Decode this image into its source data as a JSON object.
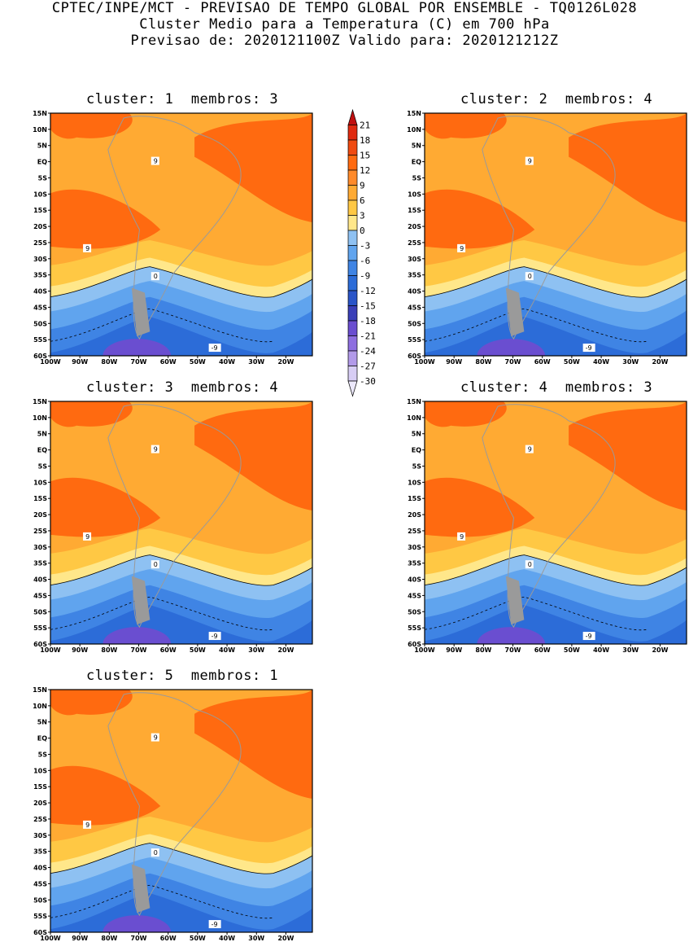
{
  "header": {
    "line1": "CPTEC/INPE/MCT - PREVISAO DE TEMPO GLOBAL POR ENSEMBLE - TQ0126L028",
    "line2": "Cluster Medio para a Temperatura (C) em 700 hPa",
    "line3": "Previsao de: 2020121100Z   Valido para: 2020121212Z"
  },
  "axes": {
    "lat_labels": [
      "15N",
      "10N",
      "5N",
      "EQ",
      "5S",
      "10S",
      "15S",
      "20S",
      "25S",
      "30S",
      "35S",
      "40S",
      "45S",
      "50S",
      "55S",
      "60S"
    ],
    "lon_labels": [
      "100W",
      "90W",
      "80W",
      "70W",
      "60W",
      "50W",
      "40W",
      "30W",
      "20W"
    ]
  },
  "panels": [
    {
      "title": "cluster: 1  membros: 3"
    },
    {
      "title": "cluster: 2  membros: 4"
    },
    {
      "title": "cluster: 3  membros: 4"
    },
    {
      "title": "cluster: 4  membros: 3"
    },
    {
      "title": "cluster: 5  membros: 1"
    }
  ],
  "colorbar": {
    "labels": [
      "21",
      "18",
      "15",
      "12",
      "9",
      "6",
      "3",
      "0",
      "-3",
      "-6",
      "-9",
      "-12",
      "-15",
      "-18",
      "-21",
      "-24",
      "-27",
      "-30"
    ],
    "colors": [
      "#c01010",
      "#e02a10",
      "#f04a10",
      "#ff6a10",
      "#ff8a2a",
      "#ffaa33",
      "#ffc844",
      "#ffe78a",
      "#8ec1f2",
      "#60a4ee",
      "#3f84e4",
      "#2c6cd8",
      "#2a55c8",
      "#3a3fb8",
      "#6a4ed0",
      "#8e6ee0",
      "#b29ae9",
      "#d7cdf4",
      "#ece8fb"
    ]
  },
  "contour_labels": {
    "zero": "0",
    "nine": "9",
    "neg_nine": "-9"
  }
}
